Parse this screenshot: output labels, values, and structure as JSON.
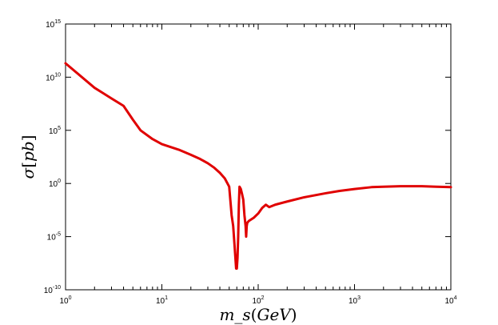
{
  "chart_data": {
    "type": "line",
    "title": "",
    "xlabel": "m_s(GeV)",
    "ylabel": "σ[pb]",
    "xscale": "log",
    "yscale": "log",
    "xlim": [
      1,
      10000
    ],
    "ylim": [
      1e-10,
      1000000000000000.0
    ],
    "x_ticks": [
      {
        "base": "10",
        "exp": "0"
      },
      {
        "base": "10",
        "exp": "1"
      },
      {
        "base": "10",
        "exp": "2"
      },
      {
        "base": "10",
        "exp": "3"
      },
      {
        "base": "10",
        "exp": "4"
      }
    ],
    "y_ticks": [
      {
        "base": "10",
        "exp": "-10"
      },
      {
        "base": "10",
        "exp": "-5"
      },
      {
        "base": "10",
        "exp": "0"
      },
      {
        "base": "10",
        "exp": "5"
      },
      {
        "base": "10",
        "exp": "10"
      },
      {
        "base": "10",
        "exp": "15"
      }
    ],
    "grid": false,
    "legend": "none",
    "series_color": "#e00000",
    "series": [
      {
        "x": [
          1,
          2,
          3,
          4,
          5,
          6,
          8,
          10,
          15,
          20,
          25,
          30,
          35,
          40,
          45,
          50,
          53,
          55,
          57,
          59,
          60,
          61,
          62,
          63,
          64,
          66,
          68,
          70,
          72,
          74,
          75,
          76,
          77,
          80,
          90,
          100,
          110,
          120,
          130,
          150,
          200,
          300,
          500,
          700,
          1000,
          1500,
          2000,
          3000,
          5000,
          7000,
          10000
        ],
        "y": [
          200000000000.0,
          1000000000.0,
          100000000.0,
          20000000.0,
          1000000.0,
          100000.0,
          15000.0,
          5000.0,
          1500.0,
          500,
          200,
          80,
          30,
          10,
          3,
          0.5,
          0.001,
          0.0001,
          1e-06,
          1e-08,
          1e-08,
          1e-07,
          1e-05,
          0.01,
          0.5,
          0.3,
          0.1,
          0.03,
          0.001,
          0.0001,
          1e-05,
          0.0001,
          0.0002,
          0.0003,
          0.0006,
          0.0015,
          0.005,
          0.01,
          0.006,
          0.01,
          0.02,
          0.05,
          0.12,
          0.2,
          0.3,
          0.45,
          0.5,
          0.55,
          0.55,
          0.5,
          0.45
        ]
      }
    ]
  }
}
